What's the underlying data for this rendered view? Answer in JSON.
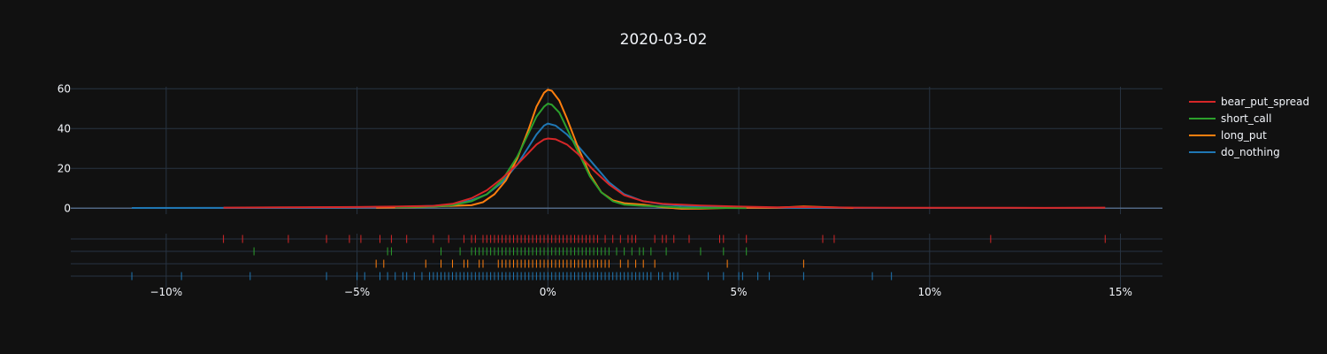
{
  "chart_data": {
    "type": "density",
    "title": "2020-03-02",
    "xlabel": "",
    "ylabel": "",
    "x_unit": "fraction (shown as %)",
    "xlim": [
      -0.125,
      0.161
    ],
    "ylim": [
      -3,
      61
    ],
    "x_ticks": [
      {
        "value": -0.1,
        "label": "−10%"
      },
      {
        "value": -0.05,
        "label": "−5%"
      },
      {
        "value": 0.0,
        "label": "0%"
      },
      {
        "value": 0.05,
        "label": "5%"
      },
      {
        "value": 0.1,
        "label": "10%"
      },
      {
        "value": 0.15,
        "label": "15%"
      }
    ],
    "y_ticks": [
      {
        "value": 0,
        "label": "0"
      },
      {
        "value": 20,
        "label": "20"
      },
      {
        "value": 40,
        "label": "40"
      },
      {
        "value": 60,
        "label": "60"
      }
    ],
    "legend": {
      "position": "right"
    },
    "series": [
      {
        "name": "bear_put_spread",
        "color": "#d62728",
        "curve": [
          [
            -0.085,
            0.3
          ],
          [
            -0.07,
            0.4
          ],
          [
            -0.05,
            0.6
          ],
          [
            -0.04,
            0.8
          ],
          [
            -0.03,
            1.2
          ],
          [
            -0.025,
            2.2
          ],
          [
            -0.02,
            5
          ],
          [
            -0.016,
            9
          ],
          [
            -0.012,
            15
          ],
          [
            -0.008,
            22
          ],
          [
            -0.005,
            28
          ],
          [
            -0.003,
            32
          ],
          [
            -0.001,
            34.5
          ],
          [
            0.0,
            35
          ],
          [
            0.002,
            34.6
          ],
          [
            0.005,
            32
          ],
          [
            0.008,
            27
          ],
          [
            0.012,
            19
          ],
          [
            0.016,
            12
          ],
          [
            0.02,
            6.5
          ],
          [
            0.025,
            3.5
          ],
          [
            0.03,
            2.2
          ],
          [
            0.04,
            1.3
          ],
          [
            0.05,
            0.8
          ],
          [
            0.06,
            0.4
          ],
          [
            0.067,
            0.6
          ],
          [
            0.08,
            0.3
          ],
          [
            0.1,
            0.2
          ],
          [
            0.116,
            0.25
          ],
          [
            0.13,
            0.15
          ],
          [
            0.146,
            0.3
          ]
        ],
        "rug": [
          -0.085,
          -0.08,
          -0.068,
          -0.058,
          -0.052,
          -0.049,
          -0.044,
          -0.041,
          -0.037,
          -0.03,
          -0.026,
          -0.022,
          -0.02,
          -0.019,
          -0.017,
          -0.016,
          -0.015,
          -0.014,
          -0.013,
          -0.012,
          -0.011,
          -0.01,
          -0.009,
          -0.008,
          -0.007,
          -0.006,
          -0.005,
          -0.004,
          -0.003,
          -0.002,
          -0.001,
          0.0,
          0.001,
          0.002,
          0.003,
          0.004,
          0.005,
          0.006,
          0.007,
          0.008,
          0.009,
          0.01,
          0.011,
          0.012,
          0.013,
          0.015,
          0.017,
          0.019,
          0.021,
          0.022,
          0.023,
          0.028,
          0.03,
          0.031,
          0.033,
          0.037,
          0.045,
          0.046,
          0.052,
          0.072,
          0.075,
          0.116,
          0.146
        ]
      },
      {
        "name": "short_call",
        "color": "#2ca02c",
        "curve": [
          [
            -0.04,
            0.4
          ],
          [
            -0.03,
            0.8
          ],
          [
            -0.025,
            1.5
          ],
          [
            -0.02,
            3.5
          ],
          [
            -0.016,
            7
          ],
          [
            -0.012,
            14
          ],
          [
            -0.008,
            26
          ],
          [
            -0.005,
            38
          ],
          [
            -0.003,
            46
          ],
          [
            -0.001,
            51
          ],
          [
            0.0,
            52.5
          ],
          [
            0.001,
            52
          ],
          [
            0.003,
            48
          ],
          [
            0.005,
            40
          ],
          [
            0.008,
            28
          ],
          [
            0.011,
            16
          ],
          [
            0.014,
            8
          ],
          [
            0.017,
            3.5
          ],
          [
            0.02,
            1.8
          ],
          [
            0.025,
            1.2
          ],
          [
            0.03,
            0.8
          ],
          [
            0.035,
            0.3
          ],
          [
            0.04,
            0.1
          ],
          [
            0.052,
            0.05
          ]
        ],
        "rug": [
          -0.077,
          -0.042,
          -0.041,
          -0.028,
          -0.023,
          -0.02,
          -0.019,
          -0.018,
          -0.017,
          -0.016,
          -0.015,
          -0.014,
          -0.013,
          -0.012,
          -0.011,
          -0.01,
          -0.009,
          -0.008,
          -0.007,
          -0.006,
          -0.005,
          -0.004,
          -0.003,
          -0.002,
          -0.001,
          0.0,
          0.001,
          0.002,
          0.003,
          0.004,
          0.005,
          0.006,
          0.007,
          0.008,
          0.009,
          0.01,
          0.011,
          0.012,
          0.013,
          0.014,
          0.015,
          0.016,
          0.018,
          0.02,
          0.022,
          0.024,
          0.025,
          0.027,
          0.031,
          0.04,
          0.046,
          0.052
        ]
      },
      {
        "name": "long_put",
        "color": "#ff7f0e",
        "curve": [
          [
            -0.045,
            0.3
          ],
          [
            -0.035,
            0.5
          ],
          [
            -0.025,
            1.2
          ],
          [
            -0.02,
            1.5
          ],
          [
            -0.017,
            3
          ],
          [
            -0.014,
            7
          ],
          [
            -0.011,
            14
          ],
          [
            -0.008,
            25
          ],
          [
            -0.005,
            40
          ],
          [
            -0.003,
            51
          ],
          [
            -0.001,
            58
          ],
          [
            0.0,
            59.5
          ],
          [
            0.001,
            59
          ],
          [
            0.003,
            54
          ],
          [
            0.005,
            45
          ],
          [
            0.008,
            30
          ],
          [
            0.011,
            17
          ],
          [
            0.014,
            8
          ],
          [
            0.017,
            4
          ],
          [
            0.02,
            2.5
          ],
          [
            0.025,
            1.8
          ],
          [
            0.03,
            0.5
          ],
          [
            0.035,
            -0.3
          ],
          [
            0.04,
            -0.2
          ],
          [
            0.05,
            0.3
          ],
          [
            0.06,
            0.3
          ],
          [
            0.067,
            0.9
          ],
          [
            0.08,
            0.1
          ]
        ],
        "rug": [
          -0.045,
          -0.043,
          -0.032,
          -0.028,
          -0.025,
          -0.022,
          -0.021,
          -0.018,
          -0.017,
          -0.013,
          -0.012,
          -0.011,
          -0.01,
          -0.009,
          -0.008,
          -0.007,
          -0.006,
          -0.005,
          -0.004,
          -0.003,
          -0.002,
          -0.001,
          0.0,
          0.001,
          0.002,
          0.003,
          0.004,
          0.005,
          0.006,
          0.007,
          0.008,
          0.009,
          0.01,
          0.011,
          0.012,
          0.013,
          0.014,
          0.015,
          0.016,
          0.019,
          0.021,
          0.023,
          0.025,
          0.028,
          0.047,
          0.067
        ]
      },
      {
        "name": "do_nothing",
        "color": "#1f77b4",
        "curve": [
          [
            -0.109,
            0.1
          ],
          [
            -0.09,
            0.15
          ],
          [
            -0.07,
            0.3
          ],
          [
            -0.05,
            0.5
          ],
          [
            -0.04,
            0.7
          ],
          [
            -0.03,
            1.2
          ],
          [
            -0.025,
            2
          ],
          [
            -0.02,
            4
          ],
          [
            -0.016,
            7
          ],
          [
            -0.012,
            13
          ],
          [
            -0.008,
            22
          ],
          [
            -0.005,
            31
          ],
          [
            -0.003,
            37
          ],
          [
            -0.001,
            41.5
          ],
          [
            0.0,
            42.5
          ],
          [
            0.002,
            41.5
          ],
          [
            0.005,
            37
          ],
          [
            0.008,
            31
          ],
          [
            0.012,
            22
          ],
          [
            0.016,
            13
          ],
          [
            0.02,
            7
          ],
          [
            0.025,
            3.5
          ],
          [
            0.03,
            2
          ],
          [
            0.035,
            1.2
          ],
          [
            0.04,
            0.8
          ],
          [
            0.05,
            0.5
          ],
          [
            0.06,
            0.3
          ],
          [
            0.07,
            0.2
          ],
          [
            0.08,
            0.15
          ],
          [
            0.09,
            0.1
          ]
        ],
        "rug": [
          -0.109,
          -0.096,
          -0.078,
          -0.058,
          -0.05,
          -0.048,
          -0.044,
          -0.042,
          -0.04,
          -0.038,
          -0.037,
          -0.035,
          -0.033,
          -0.031,
          -0.03,
          -0.029,
          -0.028,
          -0.027,
          -0.026,
          -0.025,
          -0.024,
          -0.023,
          -0.022,
          -0.021,
          -0.02,
          -0.019,
          -0.018,
          -0.017,
          -0.016,
          -0.015,
          -0.014,
          -0.013,
          -0.012,
          -0.011,
          -0.01,
          -0.009,
          -0.008,
          -0.007,
          -0.006,
          -0.005,
          -0.004,
          -0.003,
          -0.002,
          -0.001,
          0.0,
          0.001,
          0.002,
          0.003,
          0.004,
          0.005,
          0.006,
          0.007,
          0.008,
          0.009,
          0.01,
          0.011,
          0.012,
          0.013,
          0.014,
          0.015,
          0.016,
          0.017,
          0.018,
          0.019,
          0.02,
          0.021,
          0.022,
          0.023,
          0.024,
          0.025,
          0.026,
          0.027,
          0.029,
          0.03,
          0.032,
          0.033,
          0.034,
          0.042,
          0.046,
          0.05,
          0.051,
          0.055,
          0.058,
          0.067,
          0.085,
          0.09
        ]
      }
    ]
  }
}
